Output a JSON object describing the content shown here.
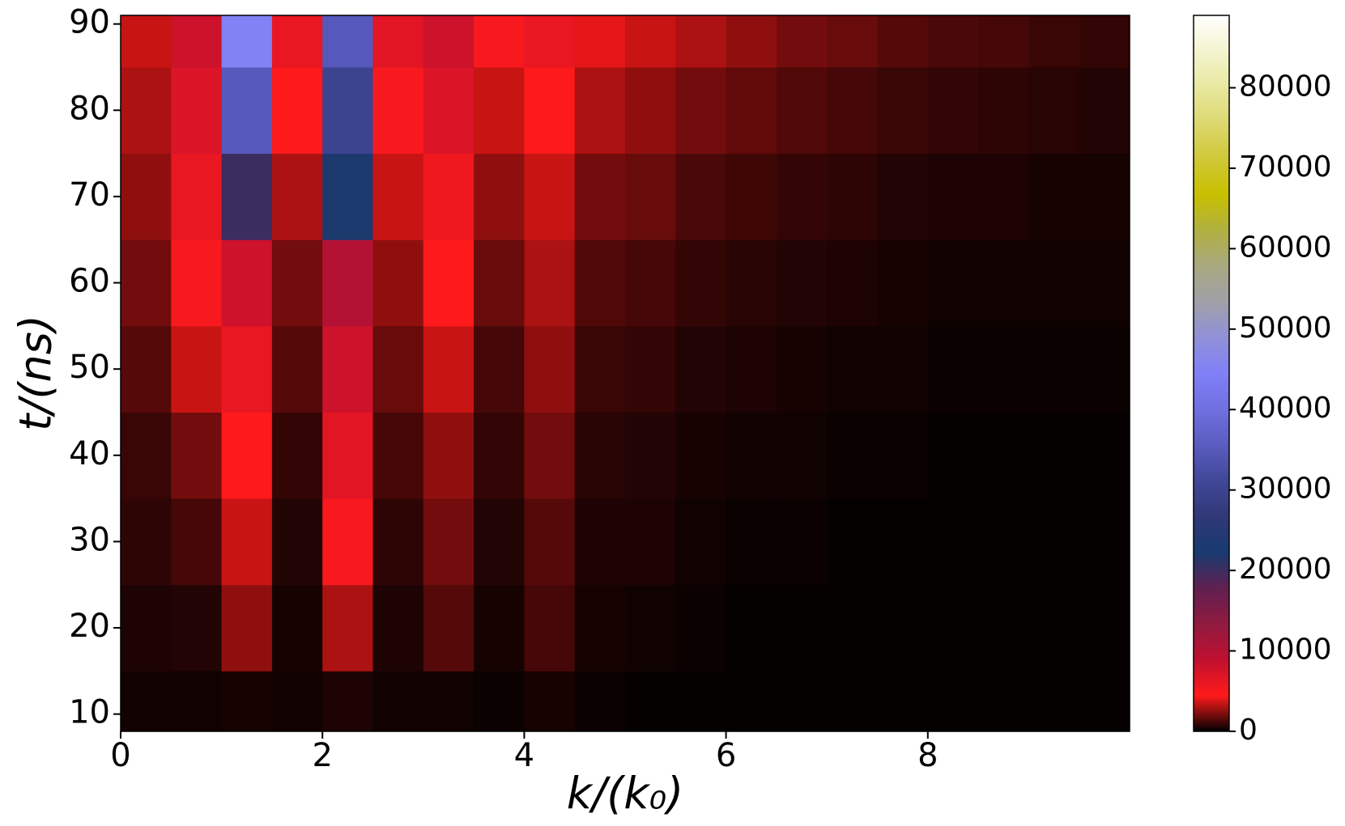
{
  "chart_data": {
    "type": "heatmap",
    "x_label": "k/(k₀)",
    "y_label": "t/(ns)",
    "xlim": [
      0,
      10
    ],
    "ylim": [
      8,
      91
    ],
    "xticks": [
      0,
      2,
      4,
      6,
      8
    ],
    "yticks": [
      10,
      20,
      30,
      40,
      50,
      60,
      70,
      80,
      90
    ],
    "xbins": [
      0,
      0.5,
      1,
      1.5,
      2,
      2.5,
      3,
      3.5,
      4,
      4.5,
      5,
      5.5,
      6,
      6.5,
      7,
      7.5,
      8,
      8.5,
      9,
      9.5,
      10
    ],
    "ybins": [
      8,
      15,
      25,
      35,
      45,
      55,
      65,
      75,
      85,
      91
    ],
    "z": [
      [
        300,
        300,
        400,
        300,
        500,
        300,
        300,
        200,
        400,
        200,
        100,
        100,
        100,
        100,
        100,
        100,
        100,
        100,
        100,
        100
      ],
      [
        500,
        600,
        2500,
        400,
        3000,
        500,
        1500,
        400,
        1200,
        400,
        300,
        200,
        100,
        100,
        100,
        100,
        100,
        100,
        100,
        100
      ],
      [
        800,
        1200,
        3500,
        600,
        5000,
        800,
        2000,
        600,
        1500,
        500,
        500,
        300,
        200,
        200,
        100,
        100,
        100,
        100,
        100,
        100
      ],
      [
        1000,
        2000,
        4500,
        900,
        6500,
        1200,
        2500,
        900,
        2000,
        700,
        600,
        400,
        300,
        300,
        200,
        200,
        100,
        100,
        100,
        100
      ],
      [
        1500,
        3500,
        6000,
        1500,
        8000,
        1800,
        3500,
        1200,
        2500,
        1000,
        900,
        600,
        500,
        400,
        300,
        300,
        200,
        200,
        200,
        200
      ],
      [
        2000,
        5000,
        8000,
        2000,
        10000,
        2500,
        4500,
        1800,
        3000,
        1400,
        1200,
        900,
        700,
        600,
        500,
        400,
        300,
        300,
        300,
        300
      ],
      [
        2500,
        6000,
        20000,
        3000,
        22000,
        3500,
        5500,
        2500,
        3500,
        2000,
        1800,
        1300,
        1100,
        900,
        800,
        600,
        500,
        500,
        400,
        400
      ],
      [
        3000,
        7000,
        35000,
        4500,
        30000,
        5000,
        7000,
        3500,
        4500,
        3000,
        2500,
        2000,
        1700,
        1400,
        1200,
        1000,
        900,
        800,
        700,
        600
      ],
      [
        3500,
        8000,
        45000,
        6000,
        35000,
        6500,
        8000,
        5000,
        6000,
        4000,
        3500,
        3000,
        2500,
        2000,
        1800,
        1500,
        1300,
        1200,
        1000,
        900
      ]
    ],
    "colorbar": {
      "lim": [
        0,
        89000
      ],
      "ticks": [
        0,
        10000,
        20000,
        30000,
        40000,
        50000,
        60000,
        70000,
        80000
      ]
    },
    "colormap": [
      "#000000",
      "#ff1a1a",
      "#c01030",
      "#901a40",
      "#602050",
      "#183a70",
      "#303878",
      "#404898",
      "#5a5cc0",
      "#7070e0",
      "#8080f8",
      "#9090d8",
      "#a0a0a8",
      "#a8a880",
      "#b0b040",
      "#c8c000",
      "#d0c838",
      "#dcd870",
      "#e8e8a0",
      "#f4f4d0",
      "#ffffff"
    ]
  }
}
